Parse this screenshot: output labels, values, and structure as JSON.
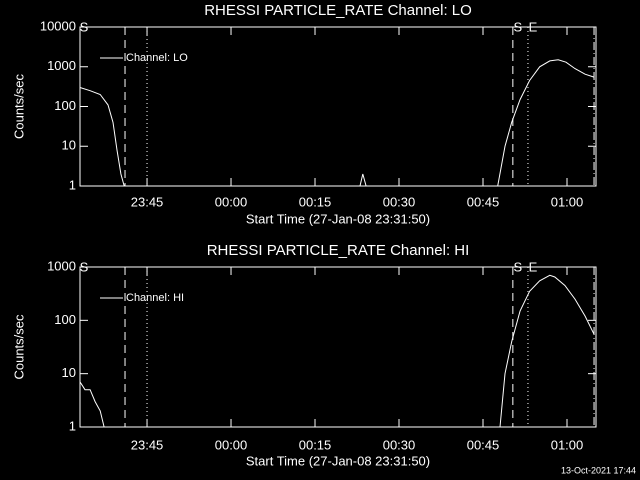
{
  "chart_data": [
    {
      "type": "line",
      "title": "RHESSI PARTICLE_RATE Channel: LO",
      "xlabel": "Start Time (27-Jan-08 23:31:50)",
      "ylabel": "Counts/sec",
      "log_y": true,
      "ylim": [
        1,
        10000
      ],
      "yticks": [
        1,
        10,
        100,
        1000,
        10000
      ],
      "xlim": [
        1.2,
        93.35
      ],
      "xticks": [
        {
          "value": 13.17,
          "label": "23:45"
        },
        {
          "value": 28.17,
          "label": "00:00"
        },
        {
          "value": 43.17,
          "label": "00:15"
        },
        {
          "value": 58.17,
          "label": "00:30"
        },
        {
          "value": 73.17,
          "label": "00:45"
        },
        {
          "value": 88.17,
          "label": "01:00"
        }
      ],
      "vlines": [
        {
          "x": 9.24,
          "style": "dashed"
        },
        {
          "x": 13.17,
          "style": "dotted"
        },
        {
          "x": 78.5,
          "style": "dashed"
        },
        {
          "x": 81.2,
          "style": "dotted"
        },
        {
          "x": 93.0,
          "style": "dashdot"
        }
      ],
      "markers": [
        {
          "text": "S",
          "x": 1.9
        },
        {
          "text": "S",
          "x": 79.4
        },
        {
          "text": "E",
          "x": 82.1
        }
      ],
      "legend": "upper left",
      "series": [
        {
          "name": "Channel: LO",
          "color": "#ffffff",
          "x": [
            1.2,
            3.0,
            4.8,
            6.2,
            7.1,
            7.8,
            8.5,
            9.1,
            51.2,
            51.7,
            52.3,
            75.8,
            77.1,
            78.3,
            79.8,
            81.5,
            83.3,
            85.1,
            86.6,
            88.0,
            89.6,
            91.4,
            93.0
          ],
          "values": [
            300,
            250,
            200,
            110,
            40,
            8,
            2,
            1,
            1,
            2,
            1,
            1,
            10,
            40,
            150,
            450,
            1000,
            1400,
            1500,
            1300,
            900,
            650,
            550
          ]
        }
      ]
    },
    {
      "type": "line",
      "title": "RHESSI PARTICLE_RATE Channel: HI",
      "xlabel": "Start Time (27-Jan-08 23:31:50)",
      "ylabel": "Counts/sec",
      "log_y": true,
      "ylim": [
        1,
        1000
      ],
      "yticks": [
        1,
        10,
        100,
        1000
      ],
      "xlim": [
        1.2,
        93.35
      ],
      "xticks": [
        {
          "value": 13.17,
          "label": "23:45"
        },
        {
          "value": 28.17,
          "label": "00:00"
        },
        {
          "value": 43.17,
          "label": "00:15"
        },
        {
          "value": 58.17,
          "label": "00:30"
        },
        {
          "value": 73.17,
          "label": "00:45"
        },
        {
          "value": 88.17,
          "label": "01:00"
        }
      ],
      "vlines": [
        {
          "x": 9.24,
          "style": "dashed"
        },
        {
          "x": 13.17,
          "style": "dotted"
        },
        {
          "x": 78.5,
          "style": "dashed"
        },
        {
          "x": 81.2,
          "style": "dotted"
        },
        {
          "x": 93.0,
          "style": "dashdot"
        }
      ],
      "markers": [
        {
          "text": "S",
          "x": 1.9
        },
        {
          "text": "S",
          "x": 79.4
        },
        {
          "text": "E",
          "x": 82.1
        }
      ],
      "legend": "upper left",
      "series": [
        {
          "name": "Channel: HI",
          "color": "#ffffff",
          "x": [
            1.2,
            2.1,
            3.0,
            3.9,
            4.8,
            5.5,
            76.2,
            77.1,
            78.3,
            79.8,
            81.5,
            83.3,
            85.1,
            86.0,
            87.8,
            89.6,
            91.4,
            93.0
          ],
          "values": [
            7,
            5,
            5,
            3,
            2,
            1,
            1,
            10,
            40,
            150,
            350,
            550,
            700,
            650,
            450,
            250,
            120,
            55
          ]
        }
      ]
    }
  ],
  "timestamp": "13-Oct-2021 17:44"
}
